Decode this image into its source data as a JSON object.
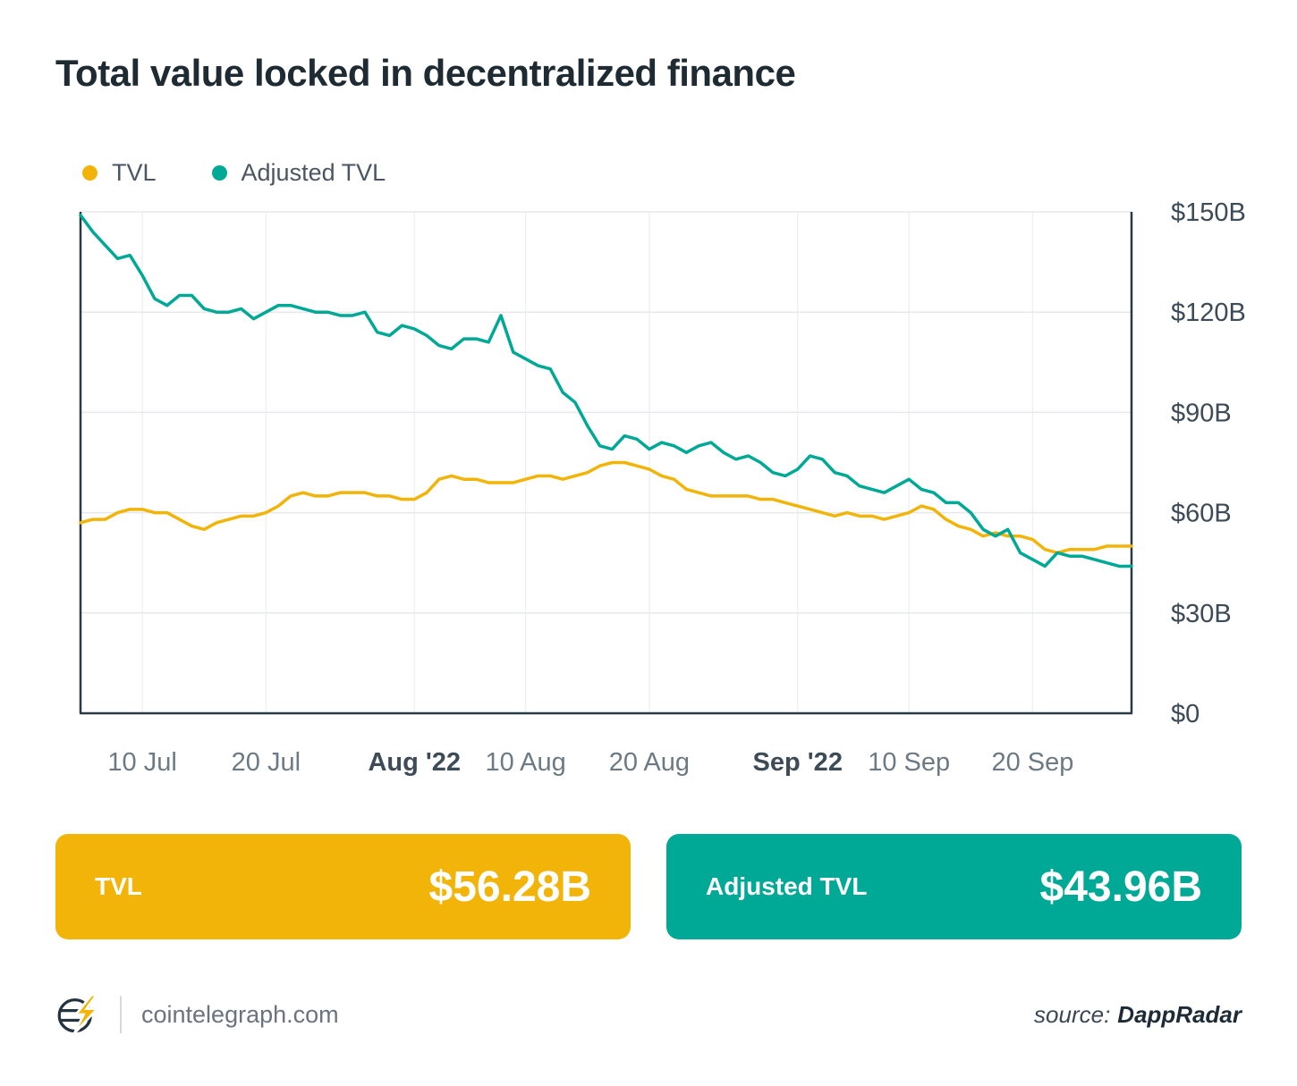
{
  "title": "Total value locked in decentralized finance",
  "colors": {
    "tvl": "#F2B408",
    "adjusted_tvl": "#00A896",
    "axis": "#2a3a45",
    "grid_h": "#e6e8eb",
    "grid_v": "#f0f1f3",
    "tick_label": "#6b7a85",
    "tick_label_bold": "#3c4b57"
  },
  "legend": [
    {
      "label": "TVL",
      "color": "#F2B408"
    },
    {
      "label": "Adjusted TVL",
      "color": "#00A896"
    }
  ],
  "chart_data": {
    "type": "line",
    "title": "Total value locked in decentralized finance",
    "xlabel": "",
    "ylabel": "",
    "x_unit": "days from 5 Jul 2022 to 28 Sep 2022",
    "xlim": [
      0,
      85
    ],
    "ylim": [
      0,
      150
    ],
    "grid": true,
    "legend_position": "top-left",
    "x_ticks": [
      {
        "label": "10 Jul",
        "day": 5,
        "bold": false
      },
      {
        "label": "20 Jul",
        "day": 15,
        "bold": false
      },
      {
        "label": "Aug '22",
        "day": 27,
        "bold": true
      },
      {
        "label": "10 Aug",
        "day": 36,
        "bold": false
      },
      {
        "label": "20 Aug",
        "day": 46,
        "bold": false
      },
      {
        "label": "Sep '22",
        "day": 58,
        "bold": true
      },
      {
        "label": "10 Sep",
        "day": 67,
        "bold": false
      },
      {
        "label": "20 Sep",
        "day": 77,
        "bold": false
      }
    ],
    "y_ticks": [
      {
        "label": "$0",
        "value": 0
      },
      {
        "label": "$30B",
        "value": 30
      },
      {
        "label": "$60B",
        "value": 60
      },
      {
        "label": "$90B",
        "value": 90
      },
      {
        "label": "$120B",
        "value": 120
      },
      {
        "label": "$150B",
        "value": 150
      }
    ],
    "series": [
      {
        "name": "TVL",
        "color": "#F2B408",
        "unit": "$B",
        "values": [
          57,
          58,
          58,
          60,
          61,
          61,
          60,
          60,
          58,
          56,
          55,
          57,
          58,
          59,
          59,
          60,
          62,
          65,
          66,
          65,
          65,
          66,
          66,
          66,
          65,
          65,
          64,
          64,
          66,
          70,
          71,
          70,
          70,
          69,
          69,
          69,
          70,
          71,
          71,
          70,
          71,
          72,
          74,
          75,
          75,
          74,
          73,
          71,
          70,
          67,
          66,
          65,
          65,
          65,
          65,
          64,
          64,
          63,
          62,
          61,
          60,
          59,
          60,
          59,
          59,
          58,
          59,
          60,
          62,
          61,
          58,
          56,
          55,
          53,
          54,
          53,
          53,
          52,
          49,
          48,
          49,
          49,
          49,
          50,
          50,
          50
        ]
      },
      {
        "name": "Adjusted TVL",
        "color": "#00A896",
        "unit": "$B",
        "values": [
          149,
          144,
          140,
          136,
          137,
          131,
          124,
          122,
          125,
          125,
          121,
          120,
          120,
          121,
          118,
          120,
          122,
          122,
          121,
          120,
          120,
          119,
          119,
          120,
          114,
          113,
          116,
          115,
          113,
          110,
          109,
          112,
          112,
          111,
          119,
          108,
          106,
          104,
          103,
          96,
          93,
          86,
          80,
          79,
          83,
          82,
          79,
          81,
          80,
          78,
          80,
          81,
          78,
          76,
          77,
          75,
          72,
          71,
          73,
          77,
          76,
          72,
          71,
          68,
          67,
          66,
          68,
          70,
          67,
          66,
          63,
          63,
          60,
          55,
          53,
          55,
          48,
          46,
          44,
          48,
          47,
          47,
          46,
          45,
          44,
          44
        ]
      }
    ]
  },
  "badges": [
    {
      "label": "TVL",
      "value": "$56.28B",
      "color": "#F2B408"
    },
    {
      "label": "Adjusted TVL",
      "value": "$43.96B",
      "color": "#00A896"
    }
  ],
  "footer": {
    "site": "cointelegraph.com",
    "source_prefix": "source:",
    "source_name": "DappRadar"
  }
}
